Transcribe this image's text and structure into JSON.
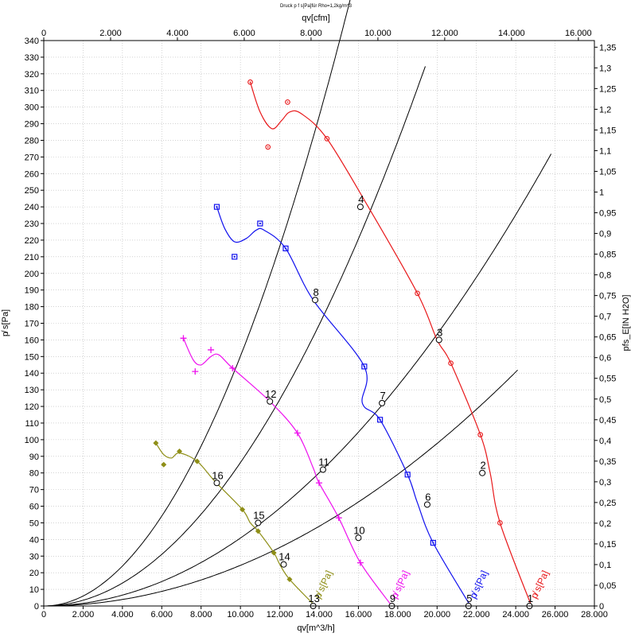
{
  "chart_data": {
    "type": "line",
    "title": "Druck p f s[Pa]für Rho=1,2kg/m^3",
    "xlabel": "qv[m^3/h]",
    "x2label": "qv[cfm]",
    "ylabel": "p̸ s[Pa]",
    "y2label": "pfs_E[IN H2O]",
    "xlim": [
      0,
      28000
    ],
    "x2lim": [
      0,
      16480
    ],
    "ylim": [
      0,
      340
    ],
    "y2lim": [
      0,
      1.366
    ],
    "x_ticks": [
      0,
      2000,
      4000,
      6000,
      8000,
      10000,
      12000,
      14000,
      16000,
      18000,
      20000,
      22000,
      24000,
      26000,
      28000
    ],
    "x_tick_labels": [
      "0",
      "2.000",
      "4.000",
      "6.000",
      "8.000",
      "10.000",
      "12.000",
      "14.000",
      "16.000",
      "18.000",
      "20.000",
      "22.000",
      "24.000",
      "26.000",
      "28.000"
    ],
    "x2_ticks": [
      0,
      2000,
      4000,
      6000,
      8000,
      10000,
      12000,
      14000,
      16000
    ],
    "x2_tick_labels": [
      "0",
      "2.000",
      "4.000",
      "6.000",
      "8.000",
      "10.000",
      "12.000",
      "14.000",
      "16.000"
    ],
    "y_ticks": [
      0,
      10,
      20,
      30,
      40,
      50,
      60,
      70,
      80,
      90,
      100,
      110,
      120,
      130,
      140,
      150,
      160,
      170,
      180,
      190,
      200,
      210,
      220,
      230,
      240,
      250,
      260,
      270,
      280,
      290,
      300,
      310,
      320,
      330,
      340
    ],
    "y_tick_labels": [
      "0",
      "10",
      "20",
      "30",
      "40",
      "50",
      "60",
      "70",
      "80",
      "90",
      "100",
      "110",
      "120",
      "130",
      "140",
      "150",
      "160",
      "170",
      "180",
      "190",
      "200",
      "210",
      "220",
      "230",
      "240",
      "250",
      "260",
      "270",
      "280",
      "290",
      "300",
      "310",
      "320",
      "330",
      "340"
    ],
    "y2_ticks": [
      0,
      0.05,
      0.1,
      0.15,
      0.2,
      0.25,
      0.3,
      0.35,
      0.4,
      0.45,
      0.5,
      0.55,
      0.6,
      0.65,
      0.7,
      0.75,
      0.8,
      0.85,
      0.9,
      0.95,
      1,
      1.05,
      1.1,
      1.15,
      1.2,
      1.25,
      1.3,
      1.35
    ],
    "y2_tick_labels": [
      "0",
      "0,05",
      "0,1",
      "0,15",
      "0,2",
      "0,25",
      "0,3",
      "0,35",
      "0,4",
      "0,45",
      "0,5",
      "0,55",
      "0,6",
      "0,65",
      "0,7",
      "0,75",
      "0,8",
      "0,85",
      "0,9",
      "0,95",
      "1",
      "1,05",
      "1,1",
      "1,15",
      "1,2",
      "1,25",
      "1,3",
      "1,35"
    ],
    "grid": true,
    "series": [
      {
        "name": "p̸ s[Pa]",
        "color": "#e8191b",
        "marker": "circle-dot",
        "label_at": [
          24800,
          4
        ],
        "markers": [
          [
            10500,
            315
          ],
          [
            11400,
            276
          ],
          [
            12400,
            303
          ],
          [
            14400,
            281
          ],
          [
            19000,
            188
          ],
          [
            20700,
            146
          ],
          [
            22200,
            103
          ],
          [
            23200,
            50
          ]
        ],
        "curve": [
          [
            10500,
            315
          ],
          [
            11000,
            297
          ],
          [
            11600,
            287
          ],
          [
            12100,
            292
          ],
          [
            12500,
            297
          ],
          [
            13100,
            296
          ],
          [
            14400,
            281
          ],
          [
            16500,
            240
          ],
          [
            19000,
            188
          ],
          [
            20000,
            160
          ],
          [
            20700,
            146
          ],
          [
            22200,
            103
          ],
          [
            22700,
            80
          ],
          [
            23200,
            50
          ],
          [
            24800,
            0
          ]
        ]
      },
      {
        "name": "p̸ s[Pa]",
        "color": "#1010ee",
        "marker": "square",
        "label_at": [
          21700,
          4
        ],
        "markers": [
          [
            8800,
            240
          ],
          [
            9700,
            210
          ],
          [
            11000,
            230
          ],
          [
            12300,
            215
          ],
          [
            16300,
            144
          ],
          [
            17100,
            112
          ],
          [
            18500,
            79
          ],
          [
            19800,
            38
          ]
        ],
        "curve": [
          [
            8800,
            240
          ],
          [
            9200,
            227
          ],
          [
            9700,
            219
          ],
          [
            10300,
            221
          ],
          [
            10800,
            226
          ],
          [
            11200,
            226
          ],
          [
            12300,
            215
          ],
          [
            13700,
            184
          ],
          [
            16300,
            144
          ],
          [
            16200,
            122
          ],
          [
            17100,
            112
          ],
          [
            18500,
            79
          ],
          [
            19000,
            62
          ],
          [
            19800,
            38
          ],
          [
            21700,
            0
          ]
        ]
      },
      {
        "name": "p̸ s[Pa]",
        "color": "#ee11ee",
        "marker": "plus",
        "label_at": [
          17700,
          4
        ],
        "markers": [
          [
            7100,
            161
          ],
          [
            7700,
            141
          ],
          [
            8500,
            154
          ],
          [
            9600,
            143
          ],
          [
            12900,
            104
          ],
          [
            14000,
            74
          ],
          [
            15000,
            53
          ],
          [
            16100,
            26
          ]
        ],
        "curve": [
          [
            7100,
            161
          ],
          [
            7600,
            148
          ],
          [
            8000,
            145
          ],
          [
            8500,
            150
          ],
          [
            8900,
            151
          ],
          [
            9600,
            143
          ],
          [
            11500,
            123
          ],
          [
            12900,
            104
          ],
          [
            13700,
            83
          ],
          [
            14000,
            74
          ],
          [
            15000,
            53
          ],
          [
            16100,
            26
          ],
          [
            17700,
            0
          ]
        ]
      },
      {
        "name": "p̸ s[Pa]",
        "color": "#8e8e16",
        "marker": "diamond",
        "label_at": [
          13800,
          4
        ],
        "markers": [
          [
            5700,
            98
          ],
          [
            6100,
            85
          ],
          [
            6900,
            93
          ],
          [
            7800,
            87
          ],
          [
            10100,
            58
          ],
          [
            10900,
            45
          ],
          [
            11700,
            32
          ],
          [
            12500,
            16
          ]
        ],
        "curve": [
          [
            5700,
            98
          ],
          [
            6100,
            91
          ],
          [
            6500,
            89
          ],
          [
            6900,
            92
          ],
          [
            7800,
            87
          ],
          [
            8700,
            75
          ],
          [
            10100,
            58
          ],
          [
            10500,
            50
          ],
          [
            10900,
            45
          ],
          [
            11700,
            32
          ],
          [
            12000,
            25
          ],
          [
            12500,
            16
          ],
          [
            13800,
            0
          ]
        ]
      }
    ],
    "system_curves": [
      {
        "k": 0.0002443,
        "x_end": 24150
      },
      {
        "k": 0.0004084,
        "x_end": 25800
      },
      {
        "k": 0.0008622,
        "x_end": 19400
      },
      {
        "k": 0.0015018,
        "x_end": 17900
      }
    ],
    "operating_points": [
      {
        "label": "1",
        "x": 24700,
        "y": 0
      },
      {
        "label": "2",
        "x": 22300,
        "y": 80
      },
      {
        "label": "3",
        "x": 20100,
        "y": 160
      },
      {
        "label": "4",
        "x": 16100,
        "y": 240
      },
      {
        "label": "5",
        "x": 21600,
        "y": 0
      },
      {
        "label": "6",
        "x": 19500,
        "y": 61
      },
      {
        "label": "7",
        "x": 17200,
        "y": 122
      },
      {
        "label": "8",
        "x": 13800,
        "y": 184
      },
      {
        "label": "9",
        "x": 17700,
        "y": 0
      },
      {
        "label": "10",
        "x": 16000,
        "y": 41
      },
      {
        "label": "11",
        "x": 14200,
        "y": 82
      },
      {
        "label": "12",
        "x": 11500,
        "y": 123
      },
      {
        "label": "13",
        "x": 13700,
        "y": 0
      },
      {
        "label": "14",
        "x": 12200,
        "y": 25
      },
      {
        "label": "15",
        "x": 10900,
        "y": 50
      },
      {
        "label": "16",
        "x": 8800,
        "y": 74
      }
    ]
  }
}
